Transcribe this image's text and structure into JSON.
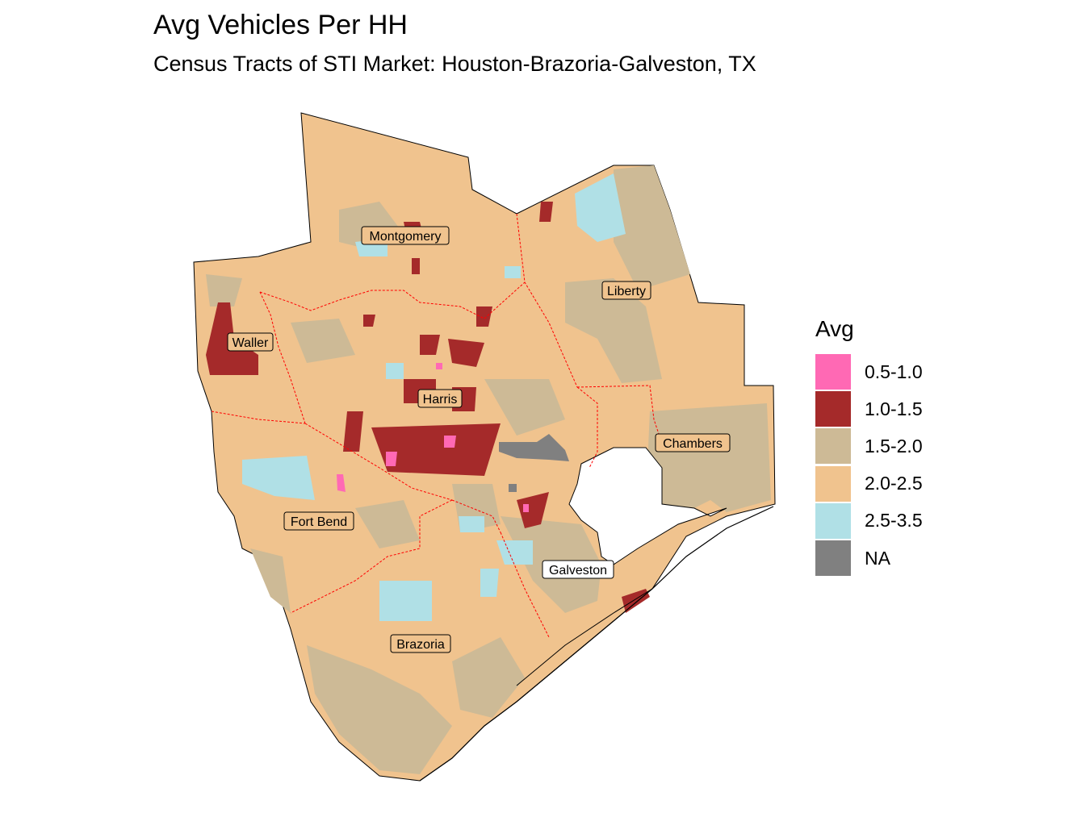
{
  "title": "Avg Vehicles Per HH",
  "subtitle": "Census Tracts of STI Market: Houston-Brazoria-Galveston, TX",
  "legend": {
    "title": "Avg",
    "items": [
      {
        "label": "0.5-1.0",
        "color": "#ff69b4"
      },
      {
        "label": "1.0-1.5",
        "color": "#a52a2a"
      },
      {
        "label": "1.5-2.0",
        "color": "#cdba96"
      },
      {
        "label": "2.0-2.5",
        "color": "#f0c38e"
      },
      {
        "label": "2.5-3.5",
        "color": "#b0e0e6"
      },
      {
        "label": "NA",
        "color": "#808080"
      }
    ]
  },
  "counties": {
    "montgomery": "Montgomery",
    "liberty": "Liberty",
    "waller": "Waller",
    "harris": "Harris",
    "chambers": "Chambers",
    "fort_bend": "Fort Bend",
    "galveston": "Galveston",
    "brazoria": "Brazoria"
  },
  "colors": {
    "county_border": "#ff0000",
    "base": "#f0c38e",
    "label_box": "#f0c38e"
  }
}
